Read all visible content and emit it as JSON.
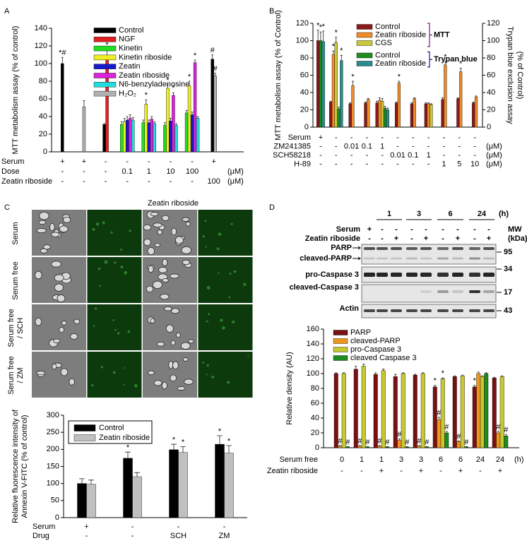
{
  "panel_labels": [
    "A",
    "B",
    "C",
    "D"
  ],
  "chart_data": [
    {
      "type": "bar",
      "ylabel": "MTT metabolism assay (% of control)",
      "categories": [
        null,
        null,
        null,
        null,
        null,
        null,
        null,
        null
      ],
      "ylim": [
        0,
        140
      ],
      "yticks": [
        0,
        20,
        40,
        60,
        80,
        100,
        120,
        140
      ],
      "series": [
        {
          "name": "Control",
          "color": "#000000",
          "values": [
            100,
            null,
            31,
            null,
            null,
            null,
            null,
            105
          ],
          "errors": [
            7,
            null,
            1,
            null,
            null,
            null,
            null,
            5
          ],
          "significance": [
            "*#",
            null,
            null,
            null,
            null,
            null,
            null,
            "#"
          ]
        },
        {
          "name": "NGF",
          "color": "#e02020",
          "values": [
            null,
            null,
            108,
            null,
            null,
            null,
            null,
            null
          ],
          "errors": [
            null,
            null,
            8,
            null,
            null,
            null,
            null,
            null
          ],
          "significance": [
            null,
            null,
            "*",
            null,
            null,
            null,
            null,
            null
          ]
        },
        {
          "name": "Kinetin",
          "color": "#22dd22",
          "values": [
            null,
            null,
            null,
            31,
            33,
            30,
            44,
            null
          ],
          "errors": [
            null,
            null,
            null,
            3,
            3,
            3,
            3,
            null
          ],
          "significance": [
            null,
            null,
            null,
            null,
            null,
            null,
            null,
            null
          ]
        },
        {
          "name": "Kinetin riboside",
          "color": "#eeee22",
          "values": [
            null,
            null,
            null,
            34,
            54,
            72,
            75,
            null
          ],
          "errors": [
            null,
            null,
            null,
            4,
            5,
            4,
            5,
            null
          ],
          "significance": [
            null,
            null,
            null,
            null,
            "*",
            "*",
            "*",
            null
          ]
        },
        {
          "name": "Zeatin",
          "color": "#1a1acc",
          "values": [
            null,
            null,
            null,
            36,
            33,
            35,
            42,
            null
          ],
          "errors": [
            null,
            null,
            null,
            4,
            3,
            3,
            3,
            null
          ],
          "significance": [
            null,
            null,
            null,
            null,
            null,
            null,
            null,
            null
          ]
        },
        {
          "name": "Zeatin riboside",
          "color": "#dd22dd",
          "values": [
            null,
            null,
            null,
            38,
            37,
            64,
            101,
            null
          ],
          "errors": [
            null,
            null,
            null,
            4,
            3,
            3,
            3,
            null
          ],
          "significance": [
            null,
            null,
            null,
            null,
            null,
            "*",
            "*",
            null
          ]
        },
        {
          "name": "N6-benzyladenosine",
          "color": "#22dddd",
          "values": [
            null,
            null,
            null,
            36,
            32,
            30,
            38,
            null
          ],
          "errors": [
            null,
            null,
            null,
            3,
            2,
            2,
            2,
            null
          ],
          "significance": [
            null,
            null,
            null,
            null,
            null,
            null,
            null,
            null
          ]
        },
        {
          "name": "H₂O₂",
          "color": "#b0b0b0",
          "values": [
            null,
            51,
            null,
            null,
            null,
            null,
            null,
            86
          ],
          "errors": [
            null,
            7,
            null,
            null,
            null,
            null,
            null,
            3
          ],
          "significance": [
            null,
            null,
            null,
            null,
            null,
            null,
            null,
            "#"
          ]
        }
      ],
      "conditions": [
        {
          "label": "Serum",
          "values": [
            "+",
            "+",
            "-",
            "-",
            "-",
            "-",
            "-",
            "+"
          ]
        },
        {
          "label": "Dose",
          "values": [
            "-",
            "-",
            "-",
            "0.1",
            "1",
            "10",
            "100",
            null
          ],
          "unit": "(μM)"
        },
        {
          "label": "Zeatin riboside",
          "values": [
            "-",
            "-",
            "-",
            "-",
            "-",
            "-",
            "-",
            "100"
          ],
          "unit": "(μM)"
        }
      ]
    },
    {
      "type": "bar",
      "ylabel": "MTT metabolism assay (% of Control)",
      "ylabel_color": "#7a1f7a",
      "y2label": [
        "Trypan blue exclusion assay",
        "(% of Control)"
      ],
      "y2label_color": "#1a1a8c",
      "categories": [
        null,
        null,
        null,
        null,
        null,
        null,
        null,
        null,
        null,
        null,
        null
      ],
      "ylim": [
        0,
        120
      ],
      "yticks": [
        0,
        20,
        40,
        60,
        80,
        100,
        120
      ],
      "y2lim": [
        0,
        120
      ],
      "y2ticks": [
        0,
        20,
        40,
        60,
        80,
        100,
        120
      ],
      "legend_groups": [
        {
          "label": "MTT",
          "color": "#7a1f7a"
        },
        {
          "label": "Trypan blue",
          "color": "#1a1a8c"
        }
      ],
      "series": [
        {
          "name": "Control",
          "color": "#8b1a1a",
          "values": [
            100,
            29,
            27,
            28,
            28,
            28,
            27,
            27,
            32,
            33,
            28
          ],
          "errors": [
            12,
            1,
            1,
            1,
            2,
            1,
            1,
            1,
            2,
            1,
            1
          ],
          "significance": [
            "*",
            null,
            null,
            null,
            null,
            null,
            null,
            null,
            null,
            null,
            null
          ]
        },
        {
          "name": "Zeatin riboside",
          "color": "#f08c28",
          "values": [
            null,
            84,
            48,
            32,
            31,
            51,
            33,
            27,
            72,
            64,
            35
          ],
          "errors": [
            null,
            4,
            5,
            1,
            3,
            2,
            1,
            1,
            4,
            4,
            1
          ],
          "significance": [
            null,
            "*",
            "*",
            null,
            null,
            "*",
            null,
            null,
            "*",
            "*",
            null
          ]
        },
        {
          "name": "CGS",
          "color": "#c8c83c",
          "values": [
            null,
            98,
            null,
            null,
            30,
            null,
            null,
            26,
            null,
            null,
            null
          ],
          "errors": [
            null,
            6,
            null,
            null,
            3,
            null,
            null,
            1,
            null,
            null,
            null
          ],
          "significance": [
            null,
            "*",
            null,
            null,
            null,
            null,
            null,
            null,
            null,
            null,
            null
          ]
        },
        {
          "name": "Control",
          "color": "#1e8c1e",
          "axis": "y2",
          "values": [
            100,
            21,
            null,
            null,
            22,
            null,
            null,
            null,
            null,
            null,
            null
          ],
          "errors": [
            10,
            2,
            null,
            null,
            2,
            null,
            null,
            null,
            null,
            null,
            null
          ],
          "significance": [
            "*",
            null,
            null,
            null,
            null,
            null,
            null,
            null,
            null,
            null,
            null
          ]
        },
        {
          "name": "Zeatin riboside",
          "color": "#2a8c8c",
          "axis": "y2",
          "values": [
            99,
            77,
            null,
            null,
            20,
            null,
            null,
            null,
            null,
            null,
            null
          ],
          "errors": [
            12,
            6,
            null,
            null,
            2,
            null,
            null,
            null,
            null,
            null,
            null
          ],
          "significance": [
            "*",
            "*",
            null,
            null,
            null,
            null,
            null,
            null,
            null,
            null,
            null
          ]
        }
      ],
      "conditions": [
        {
          "label": "Serum",
          "values": [
            "+",
            "-",
            "-",
            "-",
            "-",
            "-",
            "-",
            "-",
            "-",
            "-",
            "-"
          ]
        },
        {
          "label": "ZM241385",
          "values": [
            "-",
            "-",
            "0.01",
            "0.1",
            "1",
            "-",
            "-",
            "-",
            "-",
            "-",
            "-"
          ],
          "unit": "(μM)"
        },
        {
          "label": "SCH58218",
          "values": [
            "-",
            "-",
            "-",
            "-",
            "-",
            "0.01",
            "0.1",
            "1",
            "-",
            "-",
            "-"
          ],
          "unit": "(μM)"
        },
        {
          "label": "H-89",
          "values": [
            "-",
            "-",
            "-",
            "-",
            "-",
            "-",
            "-",
            "-",
            "1",
            "5",
            "10"
          ],
          "unit": "(μM)"
        }
      ]
    },
    {
      "type": "bar",
      "ylabel": [
        "Relative fluorescence intensity of",
        "Annexin V-FITC (% of control)"
      ],
      "categories": [
        null,
        null,
        null,
        null
      ],
      "ylim": [
        0,
        300
      ],
      "yticks": [
        0,
        50,
        100,
        150,
        200,
        250,
        300
      ],
      "series": [
        {
          "name": "Control",
          "color": "#000000",
          "values": [
            100,
            174,
            199,
            215
          ],
          "errors": [
            14,
            18,
            16,
            25
          ],
          "significance": [
            null,
            "*",
            "*",
            "*"
          ]
        },
        {
          "name": "Zeatin riboside",
          "color": "#c0c0c0",
          "values": [
            98,
            120,
            191,
            189
          ],
          "errors": [
            12,
            12,
            17,
            22
          ],
          "significance": [
            null,
            null,
            "*",
            "*"
          ]
        }
      ],
      "conditions": [
        {
          "label": "Serum",
          "values": [
            "+",
            "-",
            "-",
            "-"
          ]
        },
        {
          "label": "Drug",
          "values": [
            "-",
            "-",
            "SCH",
            "ZM"
          ]
        }
      ]
    },
    {
      "type": "bar",
      "ylabel": "Relative density (AU)",
      "categories": [
        null,
        null,
        null,
        null,
        null,
        null,
        null,
        null,
        null
      ],
      "ylim": [
        0,
        160
      ],
      "yticks": [
        0,
        20,
        40,
        60,
        80,
        100,
        120,
        140,
        160
      ],
      "series": [
        {
          "name": "PARP",
          "color": "#7b1010",
          "values": [
            100,
            106,
            99,
            96,
            98,
            82,
            96,
            82,
            94
          ],
          "errors": [
            1,
            4,
            2,
            3,
            1,
            2,
            1,
            2,
            1
          ],
          "significance": [
            null,
            null,
            null,
            null,
            null,
            "*",
            null,
            "*",
            null
          ]
        },
        {
          "name": "cleaved-PARP",
          "color": "#f0961e",
          "values": [
            2,
            2,
            2,
            10,
            2,
            38,
            8,
            100,
            20
          ],
          "errors": [
            1,
            1,
            1,
            2,
            1,
            3,
            1,
            2,
            2
          ],
          "significance": [
            "#",
            "#",
            "#",
            "#",
            "#",
            "#",
            "#",
            null,
            "#"
          ]
        },
        {
          "name": "pro-Caspase 3",
          "color": "#c8c832",
          "values": [
            100,
            110,
            104,
            100,
            100,
            93,
            97,
            96,
            96
          ],
          "errors": [
            1,
            3,
            2,
            1,
            1,
            1,
            1,
            1,
            1
          ],
          "significance": [
            null,
            null,
            null,
            null,
            null,
            "*",
            null,
            null,
            null
          ]
        },
        {
          "name": "cleaved Caspase 3",
          "color": "#1e8c1e",
          "values": [
            1,
            1,
            1,
            1,
            1,
            20,
            1,
            100,
            16
          ],
          "errors": [
            0.5,
            0.5,
            0.5,
            0.5,
            0.5,
            2,
            0.5,
            1,
            2
          ],
          "significance": [
            "#",
            "#",
            "#",
            "#",
            "#",
            "#",
            "#",
            null,
            "#"
          ]
        }
      ],
      "conditions": [
        {
          "label": "Serum free",
          "values": [
            "0",
            "1",
            "1",
            "3",
            "3",
            "6",
            "6",
            "24",
            "24"
          ],
          "unit": "(h)"
        },
        {
          "label": "Zeatin riboside",
          "values": [
            "-",
            "-",
            "+",
            "-",
            "+",
            "-",
            "+",
            "-",
            "+"
          ]
        }
      ]
    }
  ],
  "micrographs": {
    "column_header": "Zeatin riboside",
    "row_labels": [
      [
        "Serum"
      ],
      [
        "Serum free"
      ],
      [
        "Serum free",
        "/ SCH"
      ],
      [
        "Serum free",
        "/ ZM"
      ]
    ]
  },
  "blot": {
    "time_points": [
      "1",
      "3",
      "6",
      "24"
    ],
    "time_unit": "(h)",
    "conditions": [
      {
        "label": "Serum",
        "values": [
          "+",
          "-",
          "-",
          "-",
          "-",
          "-",
          "-",
          "-",
          "-"
        ]
      },
      {
        "label": "Zeatin riboside",
        "values": [
          "-",
          "-",
          "+",
          "-",
          "+",
          "-",
          "+",
          "-",
          "+"
        ]
      }
    ],
    "mw_header": [
      "MW",
      "(kDa)"
    ],
    "rows": [
      "PARP",
      "cleaved-PARP",
      "pro-Caspase 3",
      "cleaved-Caspase 3",
      "Actin"
    ],
    "mw_markers": [
      95,
      34,
      17,
      43
    ]
  }
}
